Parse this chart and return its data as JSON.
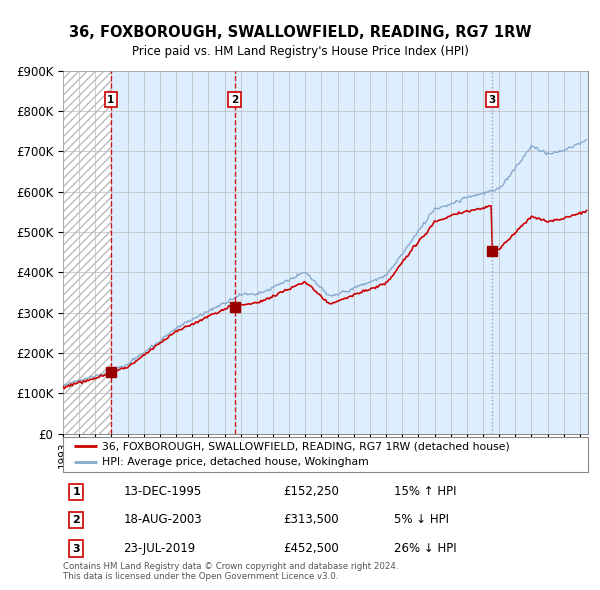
{
  "title": "36, FOXBOROUGH, SWALLOWFIELD, READING, RG7 1RW",
  "subtitle": "Price paid vs. HM Land Registry's House Price Index (HPI)",
  "ylim": [
    0,
    900000
  ],
  "yticks": [
    0,
    100000,
    200000,
    300000,
    400000,
    500000,
    600000,
    700000,
    800000,
    900000
  ],
  "ytick_labels": [
    "£0",
    "£100K",
    "£200K",
    "£300K",
    "£400K",
    "£500K",
    "£600K",
    "£700K",
    "£800K",
    "£900K"
  ],
  "sale_years": [
    1995.958,
    2003.625,
    2019.556
  ],
  "sale_prices": [
    152250,
    313500,
    452500
  ],
  "sale_labels": [
    "1",
    "2",
    "3"
  ],
  "sale_annotations": [
    {
      "label": "1",
      "date": "13-DEC-1995",
      "price": "£152,250",
      "vs_hpi": "15% ↑ HPI"
    },
    {
      "label": "2",
      "date": "18-AUG-2003",
      "price": "£313,500",
      "vs_hpi": "5% ↓ HPI"
    },
    {
      "label": "3",
      "date": "23-JUL-2019",
      "price": "£452,500",
      "vs_hpi": "26% ↓ HPI"
    }
  ],
  "legend_entries": [
    "36, FOXBOROUGH, SWALLOWFIELD, READING, RG7 1RW (detached house)",
    "HPI: Average price, detached house, Wokingham"
  ],
  "footer": "Contains HM Land Registry data © Crown copyright and database right 2024.\nThis data is licensed under the Open Government Licence v3.0.",
  "property_line_color": "#cc0000",
  "hpi_line_color": "#88aacc",
  "background_color": "#ddeeff",
  "plot_bg_color": "#ffffff",
  "grid_color": "#bbbbbb",
  "vline_colors": [
    "#cc0000",
    "#cc0000",
    "#999999"
  ],
  "marker_color": "#990000",
  "xlim_start": 1993,
  "xlim_end": 2025.5
}
